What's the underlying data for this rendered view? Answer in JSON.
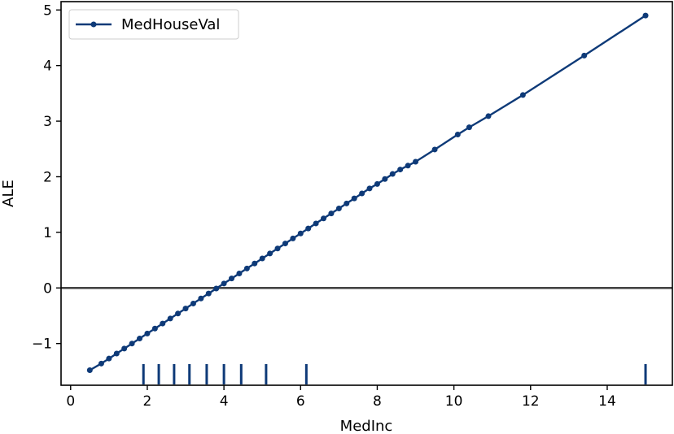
{
  "chart_data": {
    "type": "line",
    "xlabel": "MedInc",
    "ylabel": "ALE",
    "xlim": [
      -0.25,
      15.7
    ],
    "ylim": [
      -1.75,
      5.15
    ],
    "x_ticks": [
      0,
      2,
      4,
      6,
      8,
      10,
      12,
      14
    ],
    "y_ticks": [
      -1,
      0,
      1,
      2,
      3,
      4,
      5
    ],
    "y_tick_labels": [
      "−1",
      "0",
      "1",
      "2",
      "3",
      "4",
      "5"
    ],
    "grid": false,
    "legend_position": "top-left",
    "reference_line_y": 0,
    "series": [
      {
        "name": "MedHouseVal",
        "color": "#0e3a78",
        "x": [
          0.5,
          0.8,
          1.0,
          1.2,
          1.4,
          1.6,
          1.8,
          2.0,
          2.2,
          2.4,
          2.6,
          2.8,
          3.0,
          3.2,
          3.4,
          3.6,
          3.8,
          4.0,
          4.2,
          4.4,
          4.6,
          4.8,
          5.0,
          5.2,
          5.4,
          5.6,
          5.8,
          6.0,
          6.2,
          6.4,
          6.6,
          6.8,
          7.0,
          7.2,
          7.4,
          7.6,
          7.8,
          8.0,
          8.2,
          8.4,
          8.6,
          8.8,
          9.0,
          9.5,
          10.1,
          10.4,
          10.9,
          11.8,
          13.4,
          15.0
        ],
        "y": [
          -1.48,
          -1.36,
          -1.27,
          -1.18,
          -1.09,
          -1.0,
          -0.91,
          -0.82,
          -0.73,
          -0.64,
          -0.55,
          -0.46,
          -0.37,
          -0.28,
          -0.19,
          -0.1,
          -0.01,
          0.08,
          0.17,
          0.26,
          0.35,
          0.44,
          0.53,
          0.62,
          0.71,
          0.8,
          0.89,
          0.98,
          1.07,
          1.16,
          1.25,
          1.34,
          1.43,
          1.52,
          1.61,
          1.7,
          1.79,
          1.87,
          1.96,
          2.05,
          2.13,
          2.2,
          2.27,
          2.49,
          2.76,
          2.89,
          3.09,
          3.47,
          4.18,
          4.9
        ]
      }
    ],
    "rug_x": [
      1.9,
      2.3,
      2.7,
      3.1,
      3.55,
      4.0,
      4.45,
      5.1,
      6.15,
      15.0
    ]
  }
}
